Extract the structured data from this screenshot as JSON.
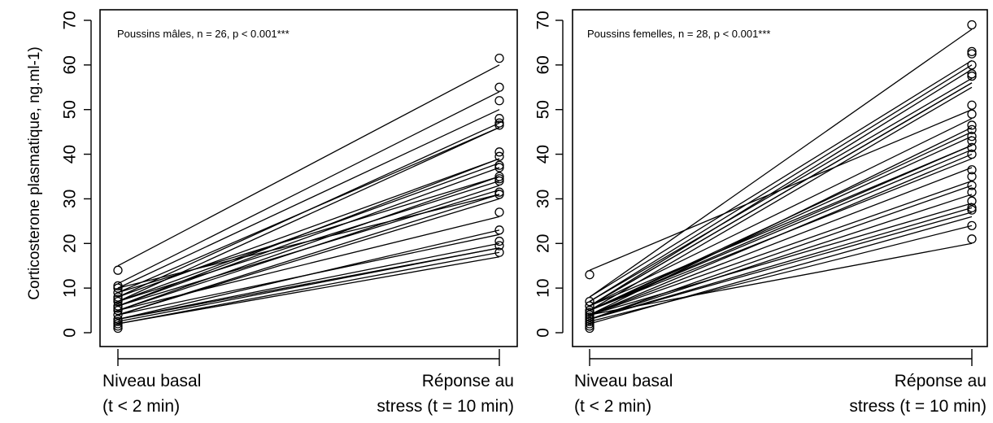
{
  "chart_data": [
    {
      "type": "line",
      "annotation": "Poussins mâles, n = 26, p < 0.001***",
      "ylabel": "Corticosterone plasmatique, ng.ml-1)",
      "ylim": [
        0,
        70
      ],
      "yticks": [
        "0",
        "10",
        "20",
        "30",
        "40",
        "50",
        "60",
        "70"
      ],
      "categories": [
        [
          "Niveau basal",
          "(t < 2 min)"
        ],
        [
          "Réponse au",
          "stress (t = 10 min)"
        ]
      ],
      "pairs": [
        [
          15,
          60
        ],
        [
          11,
          54
        ],
        [
          10,
          50
        ],
        [
          9,
          46
        ],
        [
          8,
          47
        ],
        [
          7,
          46
        ],
        [
          8,
          39
        ],
        [
          7,
          38
        ],
        [
          6,
          39
        ],
        [
          6,
          37
        ],
        [
          5,
          35
        ],
        [
          7,
          34
        ],
        [
          5,
          33
        ],
        [
          6,
          32
        ],
        [
          4,
          31
        ],
        [
          4,
          30
        ],
        [
          5,
          26
        ],
        [
          3,
          23
        ],
        [
          4,
          22
        ],
        [
          3,
          20
        ],
        [
          3,
          19
        ],
        [
          2.5,
          19
        ],
        [
          2,
          18
        ],
        [
          2,
          17
        ],
        [
          9,
          35
        ],
        [
          10,
          31
        ]
      ],
      "points_basal": [
        14,
        10.5,
        10,
        9,
        8,
        7.5,
        7,
        6,
        5.5,
        5,
        4,
        3,
        2.5,
        2,
        1.5,
        1
      ],
      "points_stress": [
        61.5,
        55,
        52,
        48,
        47,
        46.5,
        40.5,
        39.5,
        37.5,
        37,
        35,
        34.5,
        34,
        31.5,
        31,
        27,
        23,
        20.5,
        19.5,
        18
      ]
    },
    {
      "type": "line",
      "annotation": "Poussins femelles, n = 28, p < 0.001***",
      "ylabel": "",
      "ylim": [
        0,
        70
      ],
      "yticks": [
        "0",
        "10",
        "20",
        "30",
        "40",
        "50",
        "60",
        "70"
      ],
      "categories": [
        [
          "Niveau basal",
          "(t < 2 min)"
        ],
        [
          "Réponse au",
          "stress (t = 10 min)"
        ]
      ],
      "pairs": [
        [
          14,
          50
        ],
        [
          8,
          68
        ],
        [
          8,
          61
        ],
        [
          7,
          60
        ],
        [
          7,
          57
        ],
        [
          6,
          56
        ],
        [
          6,
          56
        ],
        [
          6,
          48
        ],
        [
          5,
          45
        ],
        [
          5,
          44
        ],
        [
          6,
          42
        ],
        [
          5,
          42
        ],
        [
          5,
          41
        ],
        [
          4,
          40
        ],
        [
          5,
          39
        ],
        [
          4,
          37
        ],
        [
          4,
          34
        ],
        [
          3,
          33
        ],
        [
          3,
          31
        ],
        [
          4,
          29
        ],
        [
          3,
          28
        ],
        [
          3,
          27
        ],
        [
          2,
          26
        ],
        [
          2.5,
          24
        ],
        [
          4,
          20
        ],
        [
          6,
          59
        ],
        [
          5,
          55
        ],
        [
          4,
          46
        ]
      ],
      "points_basal": [
        13,
        7,
        6,
        5,
        4.5,
        4,
        3.5,
        3,
        2.5,
        2,
        1.5,
        1
      ],
      "points_stress": [
        69,
        63,
        62.5,
        60,
        58,
        57.5,
        51,
        49,
        46.5,
        45.5,
        44,
        43,
        41.5,
        40,
        36.5,
        35,
        33,
        31.5,
        29.5,
        28,
        27.5,
        24,
        21
      ]
    }
  ]
}
